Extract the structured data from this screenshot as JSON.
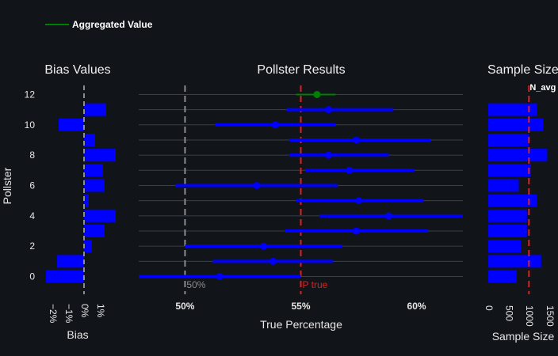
{
  "chart_data": {
    "type": "scatter",
    "legend": {
      "label": "Aggregated Value",
      "color": "#008000",
      "placement": "top-left"
    },
    "pollsters": [
      0,
      1,
      2,
      3,
      4,
      5,
      6,
      7,
      8,
      9,
      10,
      11,
      12
    ],
    "bias_panel": {
      "title": "Bias Values",
      "xlabel": "Bias",
      "ylabel": "Pollster",
      "xlim": [
        -2.5,
        2.0
      ],
      "ticks": [
        -2,
        -1,
        0,
        1
      ],
      "tick_labels": [
        "−2%",
        "−1%",
        "0%",
        "1%"
      ],
      "y_ticks": [
        0,
        2,
        4,
        6,
        8,
        10,
        12
      ],
      "values": [
        -2.4,
        -1.7,
        0.5,
        1.3,
        2.0,
        0.3,
        1.3,
        1.2,
        2.0,
        0.7,
        -1.6,
        1.4,
        null
      ],
      "bar_color": "#0000ff",
      "ref_line": 0
    },
    "results_panel": {
      "title": "Pollster Results",
      "xlabel": "True Percentage",
      "xlim": [
        48.0,
        62.0
      ],
      "ticks": [
        50,
        55,
        60
      ],
      "tick_labels": [
        "50%",
        "55%",
        "60%"
      ],
      "estimates": [
        51.5,
        53.8,
        53.4,
        57.4,
        58.8,
        57.5,
        53.1,
        57.1,
        56.2,
        57.4,
        53.9,
        56.2,
        55.7
      ],
      "lower": [
        48.0,
        51.2,
        50.0,
        54.3,
        55.8,
        54.8,
        49.6,
        55.2,
        54.5,
        54.5,
        51.3,
        54.4,
        54.8
      ],
      "upper": [
        55.0,
        56.4,
        56.8,
        60.5,
        62.0,
        60.3,
        56.6,
        59.9,
        58.8,
        60.6,
        56.5,
        59.0,
        56.5
      ],
      "point_color": "#0000ff",
      "aggregate_index": 12,
      "aggregate_color": "#008000",
      "ref_lines": [
        {
          "value": 50,
          "label": "50%",
          "color": "#8c8c8c"
        },
        {
          "value": 55,
          "label": "P true",
          "color": "#e02020"
        }
      ]
    },
    "sample_panel": {
      "title": "Sample Size",
      "xlabel": "Sample Size",
      "xlim": [
        0,
        1500
      ],
      "ticks": [
        0,
        500,
        1000,
        1500
      ],
      "tick_labels": [
        "0",
        "500",
        "1000",
        "1500"
      ],
      "values": [
        700,
        1300,
        800,
        950,
        950,
        1200,
        750,
        1050,
        1450,
        1000,
        1350,
        1200,
        null
      ],
      "bar_color": "#0000ff",
      "ref_line": {
        "value": 1000,
        "label": "N_avg",
        "color": "#e02020"
      }
    }
  }
}
